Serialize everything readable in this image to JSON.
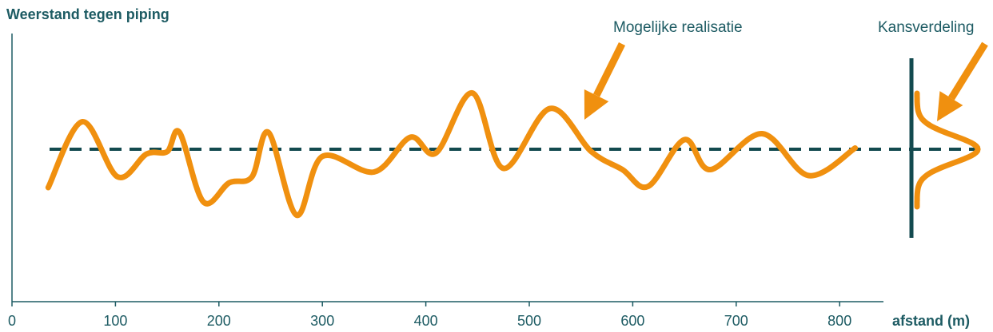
{
  "chart_data": {
    "type": "line",
    "ylabel": "Weerstand tegen piping",
    "xlabel": "afstand (m)",
    "xlim": [
      0,
      840
    ],
    "xticks": [
      "0",
      "100",
      "200",
      "300",
      "400",
      "500",
      "600",
      "700",
      "800"
    ],
    "ylim": [
      -1,
      1
    ],
    "reference_value": 0,
    "series": [
      {
        "name": "Mogelijke realisatie",
        "x": [
          35,
          68,
          102,
          130,
          150,
          162,
          185,
          210,
          232,
          248,
          275,
          300,
          350,
          385,
          410,
          445,
          475,
          520,
          560,
          590,
          615,
          650,
          675,
          725,
          770,
          815
        ],
        "y": [
          -0.32,
          0.23,
          -0.23,
          -0.04,
          -0.02,
          0.14,
          -0.44,
          -0.28,
          -0.23,
          0.14,
          -0.55,
          -0.06,
          -0.19,
          0.1,
          -0.03,
          0.47,
          -0.16,
          0.34,
          -0.02,
          -0.17,
          -0.31,
          0.08,
          -0.17,
          0.13,
          -0.22,
          0.01
        ]
      }
    ],
    "distribution_label": "Kansverdeling",
    "colors": {
      "line": "#f0900f",
      "reference": "#134a4f",
      "axis": "#1d5b63",
      "arrow": "#f0900f"
    }
  }
}
